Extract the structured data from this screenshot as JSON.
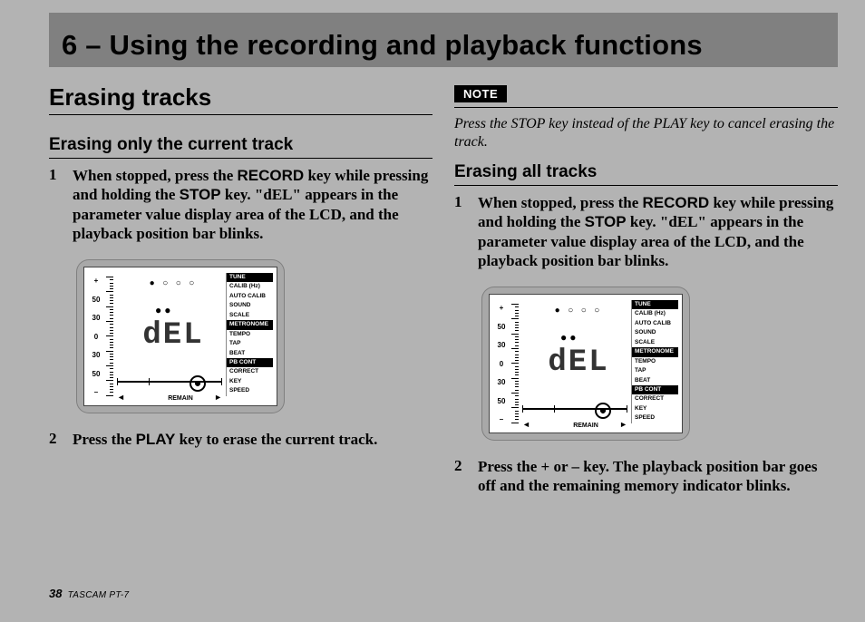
{
  "chapter": {
    "title": "6 – Using the recording and playback functions"
  },
  "colL": {
    "section": "Erasing tracks",
    "sub": "Erasing only the current track",
    "step1_pre": "When stopped, press the ",
    "step1_k1": "RECORD",
    "step1_mid": " key while pressing and holding the ",
    "step1_k2": "STOP",
    "step1_post": " key. \"dEL\" appears in the parameter value display area of the LCD, and the playback position bar blinks.",
    "step2_pre": "Press the ",
    "step2_k": "PLAY",
    "step2_post": " key to erase the current track."
  },
  "colR": {
    "note_label": "NOTE",
    "note_text": "Press the STOP key instead of the PLAY key to cancel erasing the track.",
    "sub": "Erasing all tracks",
    "step1_pre": "When stopped, press the ",
    "step1_k1": "RECORD",
    "step1_mid": " key while pressing and holding the ",
    "step1_k2": "STOP",
    "step1_post": " key. \"dEL\" appears in the parameter value display area of the LCD, and the playback position bar blinks.",
    "step2": "Press the + or – key. The playback position bar goes off and the remaining memory indicator blinks."
  },
  "lcd": {
    "scale": [
      "+",
      "50",
      "30",
      "0",
      "30",
      "50",
      "–"
    ],
    "big": "dEL",
    "dots": "● ○ ○ ○",
    "blob": "● ●",
    "menu": [
      {
        "t": "TUNE",
        "inv": true
      },
      {
        "t": "CALIB (Hz)",
        "inv": false
      },
      {
        "t": "AUTO CALIB",
        "inv": false
      },
      {
        "t": "SOUND",
        "inv": false
      },
      {
        "t": "SCALE",
        "inv": false
      },
      {
        "t": "METRONOME",
        "inv": true
      },
      {
        "t": "TEMPO",
        "inv": false
      },
      {
        "t": "TAP",
        "inv": false
      },
      {
        "t": "BEAT",
        "inv": false
      },
      {
        "t": "PB CONT",
        "inv": true
      },
      {
        "t": "CORRECT",
        "inv": false
      },
      {
        "t": "KEY",
        "inv": false
      },
      {
        "t": "SPEED",
        "inv": false
      }
    ],
    "remain": "REMAIN"
  },
  "footer": {
    "page": "38",
    "model": "TASCAM  PT-7"
  }
}
